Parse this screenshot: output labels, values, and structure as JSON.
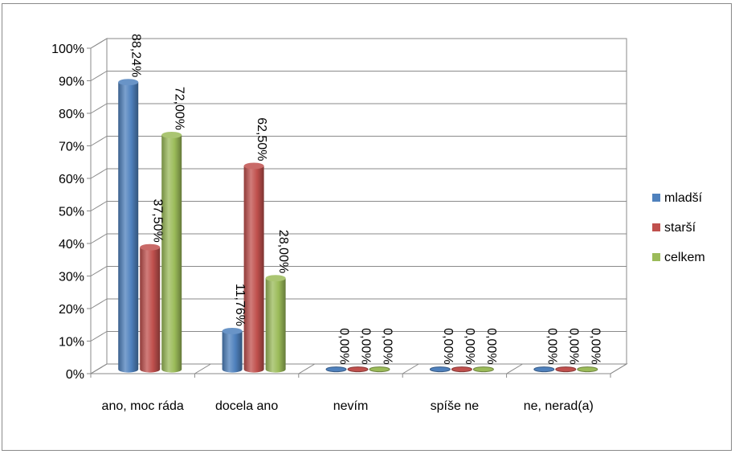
{
  "chart_data": {
    "type": "bar",
    "categories": [
      "ano, moc ráda",
      "docela ano",
      "nevím",
      "spíše ne",
      "ne, nerad(a)"
    ],
    "series": [
      {
        "name": "mladší",
        "color": "#4f81bd",
        "values": [
          88.24,
          11.76,
          0,
          0,
          0
        ],
        "labels": [
          "88,24%",
          "11,76%",
          "0,00%",
          "0,00%",
          "0,00%"
        ]
      },
      {
        "name": "starší",
        "color": "#c0504d",
        "values": [
          37.5,
          62.5,
          0,
          0,
          0
        ],
        "labels": [
          "37,50%",
          "62,50%",
          "0,00%",
          "0,00%",
          "0,00%"
        ]
      },
      {
        "name": "celkem",
        "color": "#9bbb59",
        "values": [
          72.0,
          28.0,
          0,
          0,
          0
        ],
        "labels": [
          "72,00%",
          "28,00%",
          "0,00%",
          "0,00%",
          "0,00%"
        ]
      }
    ],
    "ylim": [
      0,
      100
    ],
    "yticks": [
      "0%",
      "10%",
      "20%",
      "30%",
      "40%",
      "50%",
      "60%",
      "70%",
      "80%",
      "90%",
      "100%"
    ],
    "grid": true,
    "legend": "right",
    "style": "3d-cylinder"
  }
}
